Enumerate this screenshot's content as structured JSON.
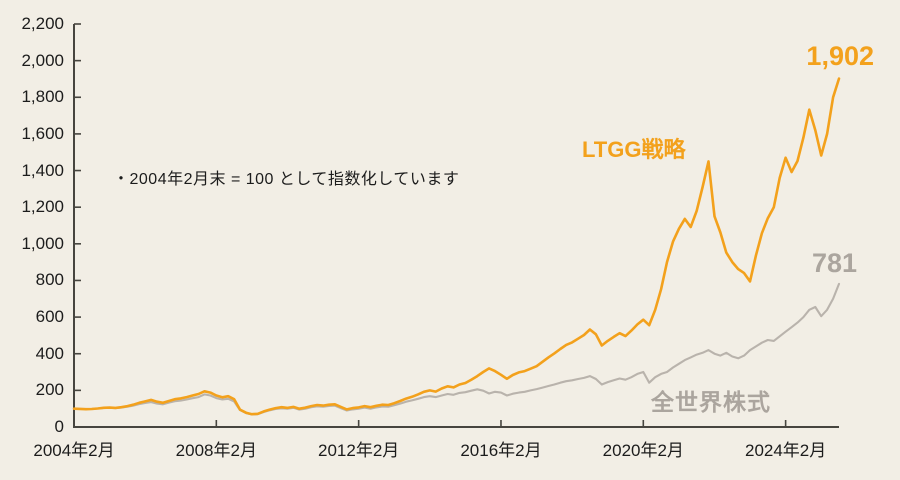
{
  "chart_data": {
    "type": "line",
    "note": "・2004年2月末 = 100 として指数化しています",
    "x_axis": {
      "start": "2004年2月",
      "points_per_year": 6,
      "total_years": 21.5,
      "tick_years": [
        2004,
        2008,
        2012,
        2016,
        2020,
        2024
      ],
      "tick_labels": [
        "2004年2月",
        "2008年2月",
        "2012年2月",
        "2016年2月",
        "2020年2月",
        "2024年2月"
      ]
    },
    "y_axis": {
      "min": 0,
      "max": 2200,
      "tick_step": 200,
      "tick_labels": [
        "0",
        "200",
        "400",
        "600",
        "800",
        "1,000",
        "1,200",
        "1,400",
        "1,600",
        "1,800",
        "2,000",
        "2,200"
      ]
    },
    "legend_position": "inline-labels",
    "grid": false,
    "series": [
      {
        "name": "全世界株式",
        "end_label": "781",
        "end_value": 781,
        "color": "#b9b3ac",
        "text_color": "#aba59e",
        "values": [
          100,
          99,
          98,
          99,
          101,
          104,
          105,
          103,
          106,
          111,
          117,
          125,
          131,
          136,
          128,
          124,
          133,
          141,
          144,
          150,
          157,
          163,
          178,
          172,
          158,
          150,
          154,
          140,
          92,
          76,
          68,
          70,
          82,
          91,
          98,
          102,
          100,
          105,
          95,
          100,
          108,
          113,
          111,
          115,
          117,
          103,
          90,
          96,
          100,
          106,
          100,
          107,
          112,
          111,
          119,
          128,
          138,
          145,
          154,
          163,
          168,
          163,
          172,
          180,
          176,
          186,
          190,
          198,
          206,
          198,
          183,
          192,
          188,
          172,
          182,
          188,
          192,
          200,
          207,
          215,
          224,
          232,
          242,
          250,
          255,
          262,
          268,
          278,
          262,
          232,
          245,
          255,
          265,
          258,
          272,
          290,
          300,
          242,
          272,
          290,
          300,
          325,
          345,
          365,
          380,
          395,
          405,
          420,
          400,
          390,
          405,
          385,
          375,
          390,
          420,
          440,
          460,
          475,
          470,
          495,
          520,
          545,
          570,
          600,
          640,
          655,
          605,
          640,
          700,
          781
        ]
      },
      {
        "name": "LTGG戦略",
        "end_label": "1,902",
        "end_value": 1902,
        "color": "#f3a11c",
        "text_color": "#f3a11c",
        "values": [
          100,
          99,
          97,
          98,
          101,
          105,
          106,
          104,
          108,
          114,
          122,
          132,
          140,
          148,
          138,
          132,
          142,
          152,
          156,
          163,
          172,
          180,
          195,
          188,
          172,
          162,
          168,
          152,
          95,
          78,
          70,
          72,
          85,
          95,
          103,
          108,
          104,
          110,
          100,
          106,
          114,
          120,
          117,
          122,
          124,
          110,
          96,
          103,
          107,
          114,
          108,
          116,
          122,
          120,
          130,
          142,
          155,
          165,
          178,
          192,
          200,
          193,
          210,
          222,
          216,
          232,
          240,
          258,
          278,
          300,
          320,
          305,
          285,
          263,
          284,
          298,
          305,
          318,
          332,
          356,
          380,
          402,
          426,
          448,
          462,
          482,
          502,
          532,
          506,
          445,
          470,
          492,
          512,
          496,
          526,
          560,
          586,
          556,
          640,
          752,
          900,
          1012,
          1082,
          1136,
          1092,
          1180,
          1310,
          1450,
          1150,
          1062,
          952,
          900,
          862,
          840,
          795,
          938,
          1058,
          1140,
          1200,
          1360,
          1470,
          1392,
          1452,
          1580,
          1732,
          1620,
          1482,
          1600,
          1800,
          1902
        ]
      }
    ],
    "index_base": 100,
    "axis_color": "#47453f"
  }
}
